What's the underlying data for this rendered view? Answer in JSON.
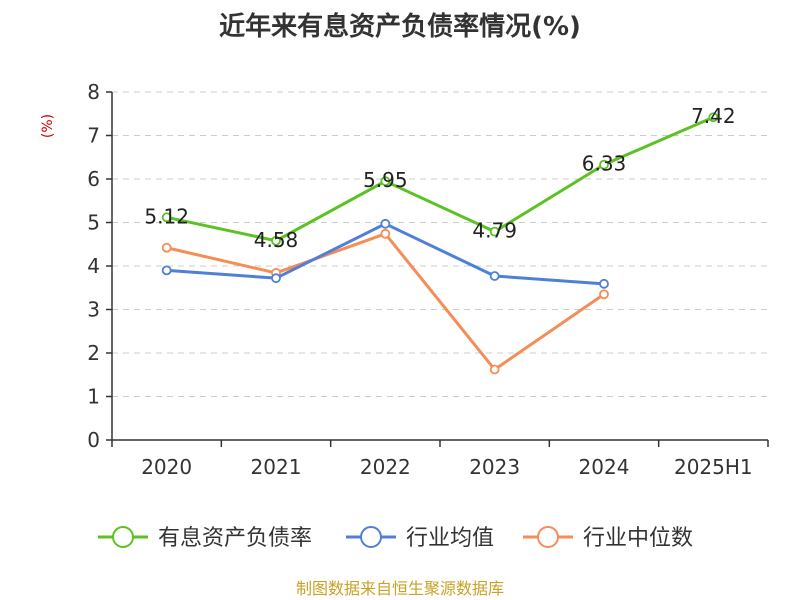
{
  "chart_data": {
    "type": "line",
    "title": "近年来有息资产负债率情况(%)",
    "ylabel": "(%)",
    "xlabel": "",
    "ylim": [
      0,
      8
    ],
    "yticks": [
      0,
      1,
      2,
      3,
      4,
      5,
      6,
      7,
      8
    ],
    "grid": true,
    "legend_position": "bottom",
    "categories": [
      "2020",
      "2021",
      "2022",
      "2023",
      "2024",
      "2025H1"
    ],
    "series": [
      {
        "name": "有息资产负债率",
        "color": "#5cc123",
        "values": [
          5.12,
          4.58,
          5.95,
          4.79,
          6.33,
          7.42
        ],
        "labels": [
          "5.12",
          "4.58",
          "5.95",
          "4.79",
          "6.33",
          "7.42"
        ]
      },
      {
        "name": "行业均值",
        "color": "#4f7fd8",
        "values": [
          3.9,
          3.72,
          4.97,
          3.77,
          3.59,
          null
        ]
      },
      {
        "name": "行业中位数",
        "color": "#f48d56",
        "values": [
          4.42,
          3.84,
          4.74,
          1.62,
          3.35,
          null
        ]
      }
    ]
  },
  "footer": {
    "source": "制图数据来自恒生聚源数据库"
  }
}
